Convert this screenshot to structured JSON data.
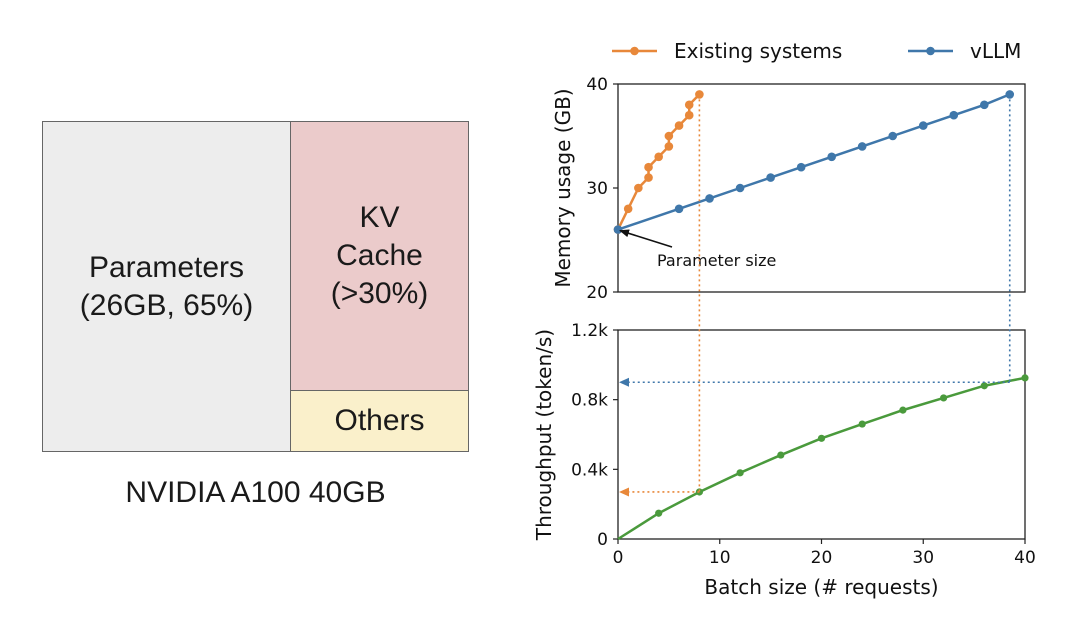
{
  "memory_layout": {
    "parameters": {
      "line1": "Parameters",
      "line2": "(26GB, 65%)",
      "color": "#ededed"
    },
    "kv_cache": {
      "line1": "KV",
      "line2": "Cache",
      "line3": "(>30%)",
      "color": "#ebcbcb"
    },
    "others": {
      "label": "Others",
      "color": "#faf0cb"
    },
    "caption": "NVIDIA A100 40GB"
  },
  "chart_data": [
    {
      "type": "line",
      "title": "",
      "xlabel": "",
      "ylabel": "Memory usage (GB)",
      "xlim": [
        0,
        40
      ],
      "ylim": [
        20,
        40
      ],
      "yticks": [
        20,
        30,
        40
      ],
      "ytick_labels": [
        "20",
        "30",
        "40"
      ],
      "legend": "top",
      "series": [
        {
          "name": "Existing systems",
          "color": "#e8883a",
          "x": [
            0,
            1,
            2,
            3,
            3,
            4,
            5,
            5,
            6,
            7,
            7,
            8
          ],
          "y": [
            26,
            28,
            30,
            31,
            32,
            33,
            34,
            35,
            36,
            37,
            38,
            39
          ]
        },
        {
          "name": "vLLM",
          "color": "#3f77aa",
          "x": [
            0,
            6,
            9,
            12,
            15,
            18,
            21,
            24,
            27,
            30,
            33,
            36,
            38.5
          ],
          "y": [
            26,
            28,
            29,
            30,
            31,
            32,
            33,
            34,
            35,
            36,
            37,
            38,
            39
          ]
        }
      ],
      "annotations": [
        {
          "text": "Parameter size",
          "x": 0,
          "y": 26
        }
      ]
    },
    {
      "type": "line",
      "title": "",
      "xlabel": "Batch size (# requests)",
      "ylabel": "Throughput (token/s)",
      "xlim": [
        0,
        40
      ],
      "ylim": [
        0,
        1200
      ],
      "xticks": [
        0,
        10,
        20,
        30,
        40
      ],
      "xtick_labels": [
        "0",
        "10",
        "20",
        "30",
        "40"
      ],
      "yticks": [
        0,
        400,
        800,
        1200
      ],
      "ytick_labels": [
        "0",
        "0.4k",
        "0.8k",
        "1.2k"
      ],
      "series": [
        {
          "name": "Throughput",
          "color": "#4a9a3c",
          "x": [
            0,
            4,
            8,
            12,
            16,
            20,
            24,
            28,
            32,
            36,
            40
          ],
          "y": [
            0,
            148,
            270,
            380,
            482,
            578,
            660,
            740,
            810,
            880,
            925
          ]
        }
      ],
      "reference_lines": [
        {
          "series": "Existing systems",
          "batch_size": 8,
          "throughput": 270,
          "color": "#e8883a"
        },
        {
          "series": "vLLM",
          "batch_size": 38.5,
          "throughput": 900,
          "color": "#3f77aa"
        }
      ]
    }
  ]
}
